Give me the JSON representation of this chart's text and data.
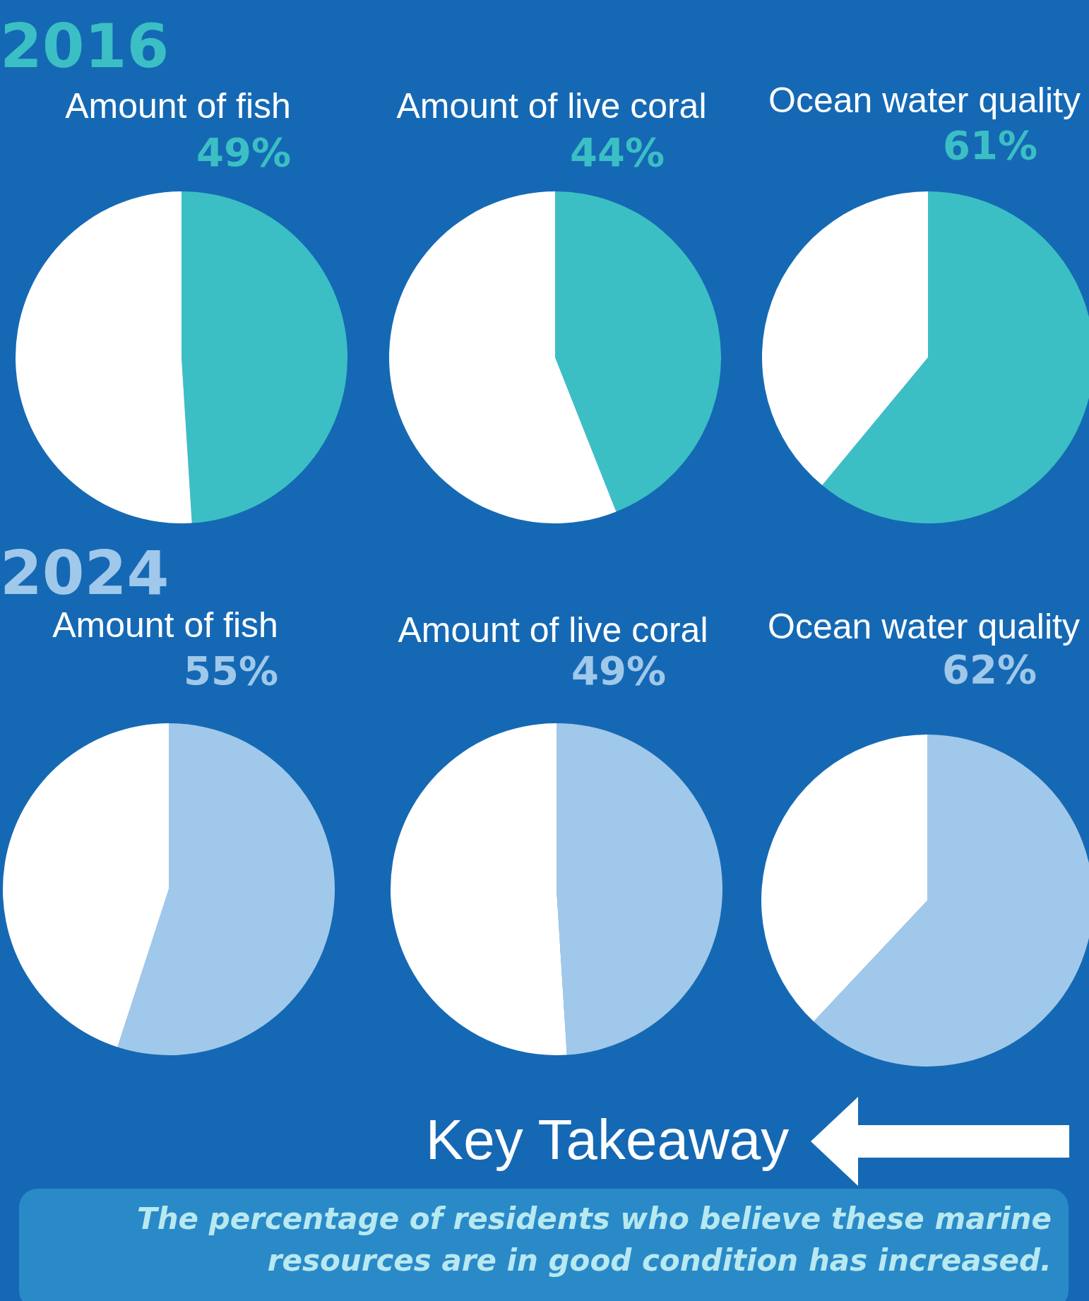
{
  "chart_data": [
    {
      "type": "pie",
      "title": "Amount of fish",
      "categories": [
        null,
        null
      ],
      "values": [
        49,
        51
      ],
      "colors": [
        "#3bbfc4",
        "#ffffff"
      ],
      "value_labels": [
        "49%",
        null
      ],
      "annotations": [
        "2016"
      ]
    },
    {
      "type": "pie",
      "title": "Amount of live coral",
      "categories": [
        null,
        null
      ],
      "values": [
        44,
        56
      ],
      "colors": [
        "#3bbfc4",
        "#ffffff"
      ],
      "value_labels": [
        "44%",
        null
      ]
    },
    {
      "type": "pie",
      "title": "Ocean water quality",
      "categories": [
        null,
        null
      ],
      "values": [
        61,
        39
      ],
      "colors": [
        "#3bbfc4",
        "#ffffff"
      ],
      "value_labels": [
        "61%",
        null
      ]
    },
    {
      "type": "pie",
      "title": "Amount of fish",
      "categories": [
        null,
        null
      ],
      "values": [
        55,
        45
      ],
      "colors": [
        "#a0c8ea",
        "#ffffff"
      ],
      "value_labels": [
        "55%",
        null
      ],
      "annotations": [
        "2024"
      ]
    },
    {
      "type": "pie",
      "title": "Amount of live coral",
      "categories": [
        null,
        null
      ],
      "values": [
        49,
        51
      ],
      "colors": [
        "#a0c8ea",
        "#ffffff"
      ],
      "value_labels": [
        "49%",
        null
      ]
    },
    {
      "type": "pie",
      "title": "Ocean water quality",
      "categories": [
        null,
        null
      ],
      "values": [
        62,
        38
      ],
      "colors": [
        "#a0c8ea",
        "#ffffff"
      ],
      "value_labels": [
        "62%",
        null
      ]
    },
    {
      "type": "other",
      "title": "Key Takeaway",
      "annotations": [
        "The percentage of residents who believe these marine resources are in good condition has increased."
      ]
    }
  ]
}
